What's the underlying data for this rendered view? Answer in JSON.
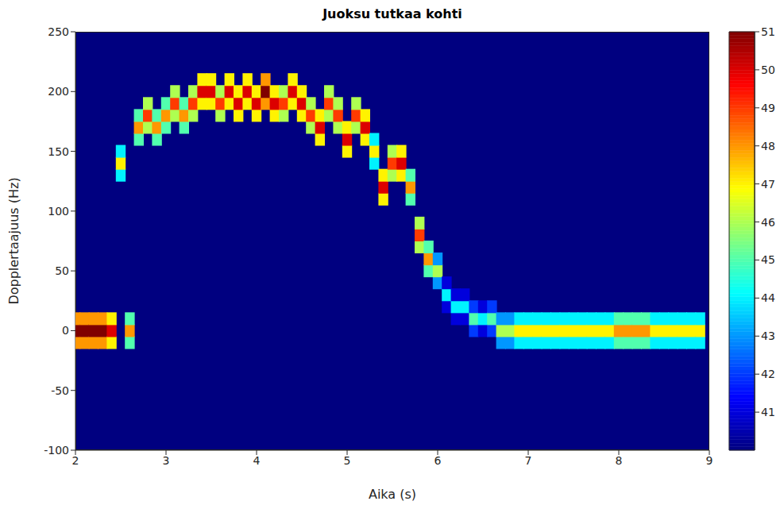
{
  "chart_data": {
    "type": "heatmap",
    "title": "Juoksu tutkaa kohti",
    "x_label": "Aika (s)",
    "y_label": "Dopplertaajuus (Hz)",
    "xlim": [
      2,
      9
    ],
    "xticks": [
      2,
      3,
      4,
      5,
      6,
      7,
      8,
      9
    ],
    "ylim": [
      -100,
      250
    ],
    "yticks": [
      -100,
      -50,
      0,
      50,
      100,
      150,
      200,
      250
    ],
    "cells": [
      [
        2.0,
        -10,
        48
      ],
      [
        2.0,
        0,
        51
      ],
      [
        2.0,
        10,
        48
      ],
      [
        2.1,
        -10,
        48
      ],
      [
        2.1,
        0,
        51
      ],
      [
        2.1,
        10,
        48
      ],
      [
        2.2,
        -10,
        48
      ],
      [
        2.2,
        0,
        51
      ],
      [
        2.2,
        10,
        48
      ],
      [
        2.3,
        -10,
        48
      ],
      [
        2.3,
        0,
        51
      ],
      [
        2.3,
        10,
        48
      ],
      [
        2.4,
        -10,
        47
      ],
      [
        2.4,
        0,
        50
      ],
      [
        2.4,
        10,
        47
      ],
      [
        2.5,
        130,
        44
      ],
      [
        2.5,
        140,
        47
      ],
      [
        2.5,
        150,
        44
      ],
      [
        2.6,
        -10,
        45
      ],
      [
        2.6,
        0,
        48
      ],
      [
        2.6,
        10,
        45
      ],
      [
        2.7,
        160,
        45
      ],
      [
        2.7,
        170,
        48
      ],
      [
        2.7,
        180,
        45
      ],
      [
        2.8,
        170,
        46
      ],
      [
        2.8,
        180,
        49
      ],
      [
        2.8,
        190,
        46
      ],
      [
        2.9,
        160,
        45
      ],
      [
        2.9,
        170,
        48
      ],
      [
        2.9,
        180,
        45
      ],
      [
        3.0,
        170,
        45
      ],
      [
        3.0,
        180,
        48
      ],
      [
        3.0,
        190,
        45
      ],
      [
        3.1,
        180,
        46
      ],
      [
        3.1,
        190,
        49
      ],
      [
        3.1,
        200,
        46
      ],
      [
        3.2,
        170,
        45
      ],
      [
        3.2,
        180,
        48
      ],
      [
        3.2,
        190,
        45
      ],
      [
        3.3,
        180,
        46
      ],
      [
        3.3,
        190,
        49
      ],
      [
        3.3,
        200,
        46
      ],
      [
        3.4,
        190,
        47
      ],
      [
        3.4,
        200,
        50
      ],
      [
        3.4,
        210,
        47
      ],
      [
        3.5,
        190,
        47
      ],
      [
        3.5,
        200,
        50
      ],
      [
        3.5,
        210,
        47
      ],
      [
        3.6,
        180,
        46
      ],
      [
        3.6,
        190,
        49
      ],
      [
        3.6,
        200,
        46
      ],
      [
        3.7,
        190,
        47
      ],
      [
        3.7,
        200,
        50
      ],
      [
        3.7,
        210,
        47
      ],
      [
        3.8,
        180,
        47
      ],
      [
        3.8,
        190,
        50
      ],
      [
        3.8,
        200,
        47
      ],
      [
        3.9,
        190,
        47
      ],
      [
        3.9,
        200,
        50
      ],
      [
        3.9,
        210,
        47
      ],
      [
        4.0,
        180,
        47
      ],
      [
        4.0,
        190,
        50
      ],
      [
        4.0,
        200,
        47
      ],
      [
        4.1,
        190,
        48
      ],
      [
        4.1,
        200,
        51
      ],
      [
        4.1,
        210,
        48
      ],
      [
        4.2,
        180,
        47
      ],
      [
        4.2,
        190,
        50
      ],
      [
        4.2,
        200,
        47
      ],
      [
        4.3,
        180,
        46
      ],
      [
        4.3,
        190,
        49
      ],
      [
        4.3,
        200,
        46
      ],
      [
        4.4,
        190,
        47
      ],
      [
        4.4,
        200,
        50
      ],
      [
        4.4,
        210,
        47
      ],
      [
        4.5,
        180,
        47
      ],
      [
        4.5,
        190,
        50
      ],
      [
        4.5,
        200,
        47
      ],
      [
        4.6,
        170,
        46
      ],
      [
        4.6,
        180,
        49
      ],
      [
        4.6,
        190,
        46
      ],
      [
        4.7,
        160,
        47
      ],
      [
        4.7,
        170,
        50
      ],
      [
        4.7,
        180,
        47
      ],
      [
        4.8,
        180,
        46
      ],
      [
        4.8,
        190,
        49
      ],
      [
        4.8,
        200,
        46
      ],
      [
        4.9,
        170,
        46
      ],
      [
        4.9,
        180,
        49
      ],
      [
        4.9,
        190,
        46
      ],
      [
        5.0,
        150,
        47
      ],
      [
        5.0,
        160,
        50
      ],
      [
        5.0,
        170,
        47
      ],
      [
        5.1,
        170,
        46
      ],
      [
        5.1,
        180,
        49
      ],
      [
        5.1,
        190,
        46
      ],
      [
        5.2,
        160,
        47
      ],
      [
        5.2,
        170,
        50
      ],
      [
        5.2,
        180,
        47
      ],
      [
        5.3,
        140,
        44
      ],
      [
        5.3,
        150,
        47
      ],
      [
        5.3,
        160,
        44
      ],
      [
        5.4,
        110,
        47
      ],
      [
        5.4,
        120,
        50
      ],
      [
        5.4,
        130,
        47
      ],
      [
        5.5,
        130,
        46
      ],
      [
        5.5,
        140,
        49
      ],
      [
        5.5,
        150,
        46
      ],
      [
        5.6,
        130,
        47
      ],
      [
        5.6,
        140,
        50
      ],
      [
        5.6,
        150,
        47
      ],
      [
        5.7,
        110,
        45
      ],
      [
        5.7,
        120,
        48
      ],
      [
        5.7,
        130,
        45
      ],
      [
        5.8,
        70,
        46
      ],
      [
        5.8,
        80,
        49
      ],
      [
        5.8,
        90,
        46
      ],
      [
        5.9,
        50,
        45
      ],
      [
        5.9,
        60,
        48
      ],
      [
        5.9,
        70,
        45
      ],
      [
        6.0,
        40,
        43
      ],
      [
        6.0,
        50,
        46
      ],
      [
        6.0,
        60,
        43
      ],
      [
        6.1,
        20,
        41
      ],
      [
        6.1,
        30,
        44
      ],
      [
        6.1,
        40,
        41
      ],
      [
        6.2,
        10,
        41
      ],
      [
        6.2,
        20,
        44
      ],
      [
        6.2,
        30,
        41
      ],
      [
        6.3,
        10,
        41
      ],
      [
        6.3,
        20,
        44
      ],
      [
        6.3,
        30,
        41
      ],
      [
        6.4,
        0,
        42
      ],
      [
        6.4,
        10,
        45
      ],
      [
        6.4,
        20,
        42
      ],
      [
        6.5,
        0,
        41
      ],
      [
        6.5,
        10,
        44
      ],
      [
        6.5,
        20,
        41
      ],
      [
        6.6,
        0,
        42
      ],
      [
        6.6,
        10,
        45
      ],
      [
        6.6,
        20,
        42
      ],
      [
        6.7,
        -10,
        43
      ],
      [
        6.7,
        0,
        46
      ],
      [
        6.7,
        10,
        43
      ],
      [
        6.8,
        -10,
        43
      ],
      [
        6.8,
        0,
        46
      ],
      [
        6.8,
        10,
        43
      ],
      [
        6.9,
        -10,
        44
      ],
      [
        6.9,
        0,
        47
      ],
      [
        6.9,
        10,
        44
      ],
      [
        7.0,
        -10,
        44
      ],
      [
        7.0,
        0,
        47
      ],
      [
        7.0,
        10,
        44
      ],
      [
        7.1,
        -10,
        44
      ],
      [
        7.1,
        0,
        47
      ],
      [
        7.1,
        10,
        44
      ],
      [
        7.2,
        -10,
        44
      ],
      [
        7.2,
        0,
        47
      ],
      [
        7.2,
        10,
        44
      ],
      [
        7.3,
        -10,
        44
      ],
      [
        7.3,
        0,
        47
      ],
      [
        7.3,
        10,
        44
      ],
      [
        7.4,
        -10,
        44
      ],
      [
        7.4,
        0,
        47
      ],
      [
        7.4,
        10,
        44
      ],
      [
        7.5,
        -10,
        44
      ],
      [
        7.5,
        0,
        47
      ],
      [
        7.5,
        10,
        44
      ],
      [
        7.6,
        -10,
        44
      ],
      [
        7.6,
        0,
        47
      ],
      [
        7.6,
        10,
        44
      ],
      [
        7.7,
        -10,
        44
      ],
      [
        7.7,
        0,
        47
      ],
      [
        7.7,
        10,
        44
      ],
      [
        7.8,
        -10,
        44
      ],
      [
        7.8,
        0,
        47
      ],
      [
        7.8,
        10,
        44
      ],
      [
        7.9,
        -10,
        44
      ],
      [
        7.9,
        0,
        47
      ],
      [
        7.9,
        10,
        44
      ],
      [
        8.0,
        -10,
        45
      ],
      [
        8.0,
        0,
        48
      ],
      [
        8.0,
        10,
        45
      ],
      [
        8.1,
        -10,
        45
      ],
      [
        8.1,
        0,
        48
      ],
      [
        8.1,
        10,
        45
      ],
      [
        8.2,
        -10,
        45
      ],
      [
        8.2,
        0,
        48
      ],
      [
        8.2,
        10,
        45
      ],
      [
        8.3,
        -10,
        45
      ],
      [
        8.3,
        0,
        48
      ],
      [
        8.3,
        10,
        45
      ],
      [
        8.4,
        -10,
        44
      ],
      [
        8.4,
        0,
        47
      ],
      [
        8.4,
        10,
        44
      ],
      [
        8.5,
        -10,
        44
      ],
      [
        8.5,
        0,
        47
      ],
      [
        8.5,
        10,
        44
      ],
      [
        8.6,
        -10,
        44
      ],
      [
        8.6,
        0,
        47
      ],
      [
        8.6,
        10,
        44
      ],
      [
        8.7,
        -10,
        44
      ],
      [
        8.7,
        0,
        47
      ],
      [
        8.7,
        10,
        44
      ],
      [
        8.8,
        -10,
        44
      ],
      [
        8.8,
        0,
        47
      ],
      [
        8.8,
        10,
        44
      ],
      [
        8.9,
        -10,
        44
      ],
      [
        8.9,
        0,
        47
      ],
      [
        8.9,
        10,
        44
      ]
    ],
    "colorbar": {
      "range": [
        40,
        51
      ],
      "ticks": [
        41,
        42,
        43,
        44,
        45,
        46,
        47,
        48,
        49,
        50,
        51
      ]
    }
  }
}
